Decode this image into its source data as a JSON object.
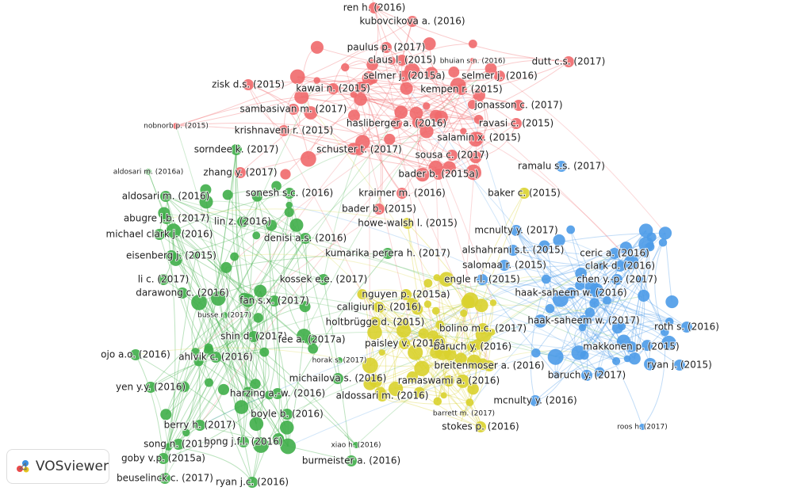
{
  "clusters": [
    {
      "color": "#f0696c",
      "nodes": [
        "ren h. (2016)",
        "kubovcikova a. (2016)",
        "paulus p. (2017)",
        "claus l. (2015)",
        "bhuian s.n. (2016)",
        "dutt c.s. (2017)",
        "selmer j. (2015a)",
        "selmer j. (2016)",
        "zisk d.s. (2015)",
        "kawai n. (2015)",
        "kempen r. (2015)",
        "sambasivan m. (2017)",
        "jonasson c. (2017)",
        "nobnorb p. (2015)",
        "krishnaveni r. (2015)",
        "hasliberger a. (2016)",
        "ravasi c. (2015)",
        "salamin x. (2015)",
        "schuster t. (2017)",
        "sousa c. (2017)",
        "bader b. (2015a)",
        "kraimer m. (2016)",
        "bader b. (2015)",
        "zhang y. (2017)"
      ]
    },
    {
      "color": "#3fae49",
      "nodes": [
        "sorndee k. (2017)",
        "aldosari m. (2016a)",
        "aldosari m. (2016)",
        "sonesh s.c. (2016)",
        "abugre j.b. (2017)",
        "lin z. (2016)",
        "michael clark j. (2016)",
        "denisi a.s. (2016)",
        "eisenberg j. (2015)",
        "kumarika perera h. (2017)",
        "li c. (2017)",
        "kossek e.e. (2017)",
        "darawong c. (2016)",
        "fan s.x. (2017)",
        "busse r. (2017)",
        "shin d. (2017)",
        "fee a. (2017a)",
        "ojo a.o. (2016)",
        "ahlvik c. (2016)",
        "horak s. (2017)",
        "michailova s. (2016)",
        "yen y.y. (2016)",
        "harzing a.-w. (2016)",
        "boyle b. (2016)",
        "berry h. (2017)",
        "song n. (2015)",
        "hong j.f.l. (2016)",
        "goby v.p. (2015a)",
        "xiao h. (2016)",
        "burmeister a. (2016)",
        "beuselinck c. (2017)",
        "ryan j.c. (2016)"
      ]
    },
    {
      "color": "#d9d22e",
      "nodes": [
        "howe-walsh l. (2015)",
        "baker c. (2015)",
        "nguyen p. (2015a)",
        "caligiuri p. (2016)",
        "holtbrügge d. (2015)",
        "bolino m.c. (2017)",
        "paisley v. (2016)",
        "baruch y. (2016)",
        "breitenmoser a. (2016)",
        "ramaswami a. (2016)",
        "aldossari m. (2016)",
        "barrett m. (2017)",
        "stokes p. (2016)"
      ]
    },
    {
      "color": "#4c9be8",
      "nodes": [
        "ramalu s.s. (2017)",
        "mcnulty y. (2017)",
        "alshahrani s.t. (2015)",
        "salomaa r. (2015)",
        "ceric a. (2016)",
        "clark d. (2016)",
        "engle r.l. (2015)",
        "chen y.-p. (2017)",
        "haak-saheem w. (2016)",
        "haak-saheem w. (2017)",
        "roth s. (2016)",
        "makkonen p. (2015)",
        "baruch y. (2017)",
        "ryan j. (2015)",
        "mcnulty y. (2016)",
        "roos h. (2017)"
      ]
    }
  ],
  "logo": "VOSviewer"
}
